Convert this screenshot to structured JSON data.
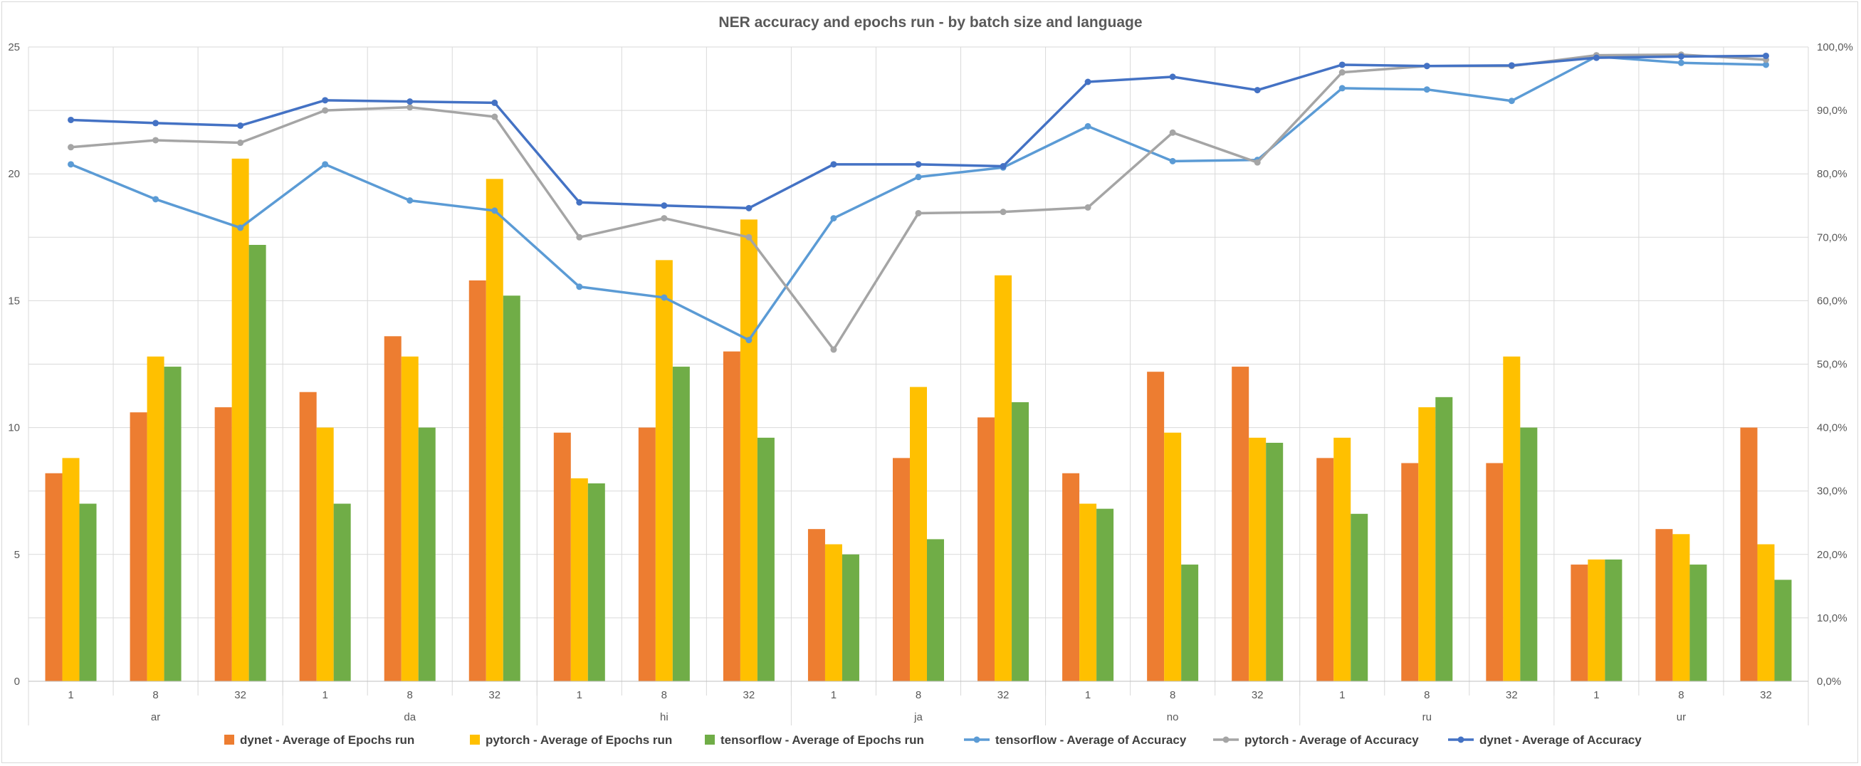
{
  "chart_data": {
    "type": "bar",
    "title": "NER accuracy and epochs run - by batch size and language",
    "groups": [
      {
        "label": "ar",
        "categories": [
          "1",
          "8",
          "32"
        ]
      },
      {
        "label": "da",
        "categories": [
          "1",
          "8",
          "32"
        ]
      },
      {
        "label": "hi",
        "categories": [
          "1",
          "8",
          "32"
        ]
      },
      {
        "label": "ja",
        "categories": [
          "1",
          "8",
          "32"
        ]
      },
      {
        "label": "no",
        "categories": [
          "1",
          "8",
          "32"
        ]
      },
      {
        "label": "ru",
        "categories": [
          "1",
          "8",
          "32"
        ]
      },
      {
        "label": "ur",
        "categories": [
          "1",
          "8",
          "32"
        ]
      }
    ],
    "y_left": {
      "min": 0,
      "max": 25,
      "ticks": [
        "0",
        "5",
        "10",
        "15",
        "20",
        "25"
      ]
    },
    "y_right": {
      "min": 0,
      "max": 1,
      "ticks": [
        "0,0%",
        "10,0%",
        "20,0%",
        "30,0%",
        "40,0%",
        "50,0%",
        "60,0%",
        "70,0%",
        "80,0%",
        "90,0%",
        "100,0%"
      ]
    },
    "grid": true,
    "legend_position": "bottom",
    "bar_series": [
      {
        "name": "dynet - Average of Epochs run",
        "color": "#ED7D31",
        "values": [
          8.2,
          10.6,
          10.8,
          11.4,
          13.6,
          15.8,
          9.8,
          10.0,
          13.0,
          6.0,
          8.8,
          10.4,
          8.2,
          12.2,
          12.4,
          8.8,
          8.6,
          8.6,
          4.6,
          6.0,
          10.0
        ]
      },
      {
        "name": "pytorch - Average of Epochs run",
        "color": "#FFC000",
        "values": [
          8.8,
          12.8,
          20.6,
          10.0,
          12.8,
          19.8,
          8.0,
          16.6,
          18.2,
          5.4,
          11.6,
          16.0,
          7.0,
          9.8,
          9.6,
          9.6,
          10.8,
          12.8,
          4.8,
          5.8,
          5.4
        ]
      },
      {
        "name": "tensorflow - Average of Epochs run",
        "color": "#70AD47",
        "values": [
          7.0,
          12.4,
          17.2,
          7.0,
          10.0,
          15.2,
          7.8,
          12.4,
          9.6,
          5.0,
          5.6,
          11.0,
          6.8,
          4.6,
          9.4,
          6.6,
          11.2,
          10.0,
          4.8,
          4.6,
          4.0
        ]
      }
    ],
    "line_series": [
      {
        "name": "tensorflow - Average of Accuracy",
        "color": "#5B9BD5",
        "values": [
          0.815,
          0.76,
          0.715,
          0.815,
          0.758,
          0.742,
          0.622,
          0.605,
          0.538,
          0.73,
          0.795,
          0.81,
          0.875,
          0.82,
          0.822,
          0.935,
          0.933,
          0.915,
          0.985,
          0.975,
          0.972
        ]
      },
      {
        "name": "pytorch - Average of Accuracy",
        "color": "#A5A5A5",
        "values": [
          0.842,
          0.853,
          0.849,
          0.9,
          0.905,
          0.89,
          0.7,
          0.73,
          0.7,
          0.523,
          0.738,
          0.74,
          0.747,
          0.865,
          0.818,
          0.96,
          0.97,
          0.97,
          0.987,
          0.988,
          0.98
        ]
      },
      {
        "name": "dynet - Average of Accuracy",
        "color": "#4472C4",
        "values": [
          0.885,
          0.88,
          0.876,
          0.916,
          0.914,
          0.912,
          0.755,
          0.75,
          0.746,
          0.815,
          0.815,
          0.812,
          0.945,
          0.953,
          0.932,
          0.972,
          0.97,
          0.971,
          0.983,
          0.985,
          0.986
        ]
      }
    ]
  }
}
